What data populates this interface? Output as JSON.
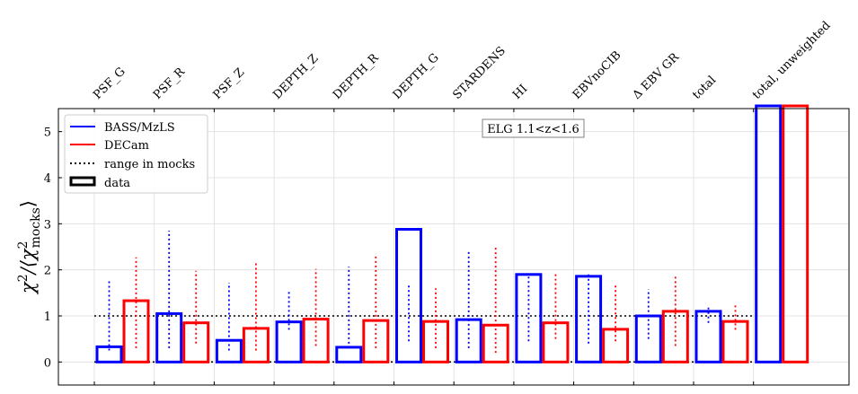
{
  "chart_data": {
    "type": "bar",
    "annotation": "ELG 1.1<z<1.6",
    "ylabel": "χ²/⟨χ²mocks⟩",
    "ylabel_main": "χ",
    "ylabel_sup": "2",
    "ylabel_slash": "/⟨χ",
    "ylabel_sub": "mocks",
    "ylabel_close": "⟩",
    "ylim": [
      -0.5,
      5.5
    ],
    "yticks": [
      0,
      1,
      2,
      3,
      4,
      5
    ],
    "categories": [
      "PSF_G",
      "PSF_R",
      "PSF_Z",
      "DEPTH_Z",
      "DEPTH_R",
      "DEPTH_G",
      "STARDENS",
      "HI",
      "EBVnoCIB",
      "Δ EBV GR",
      "total",
      "total, unweighted"
    ],
    "series": [
      {
        "name": "BASS/MzLS",
        "color": "#0000ff",
        "values": [
          0.33,
          1.05,
          0.47,
          0.87,
          0.32,
          2.88,
          0.92,
          1.9,
          1.86,
          1.0,
          1.1,
          5.5
        ],
        "mock_low": [
          0.25,
          0.3,
          0.25,
          0.7,
          0.3,
          0.45,
          0.3,
          0.45,
          0.4,
          0.5,
          0.85,
          null
        ],
        "mock_high": [
          1.8,
          2.85,
          1.72,
          1.55,
          2.07,
          1.7,
          2.4,
          1.85,
          1.92,
          1.58,
          1.2,
          null
        ]
      },
      {
        "name": "DECam",
        "color": "#ff0000",
        "values": [
          1.33,
          0.85,
          0.73,
          0.93,
          0.9,
          0.88,
          0.8,
          0.85,
          0.71,
          1.1,
          0.88,
          5.5
        ],
        "mock_low": [
          0.3,
          0.4,
          0.25,
          0.35,
          0.3,
          0.3,
          0.2,
          0.5,
          0.45,
          0.35,
          0.7,
          null
        ],
        "mock_high": [
          2.27,
          1.98,
          2.15,
          2.02,
          2.35,
          1.6,
          2.53,
          1.95,
          1.68,
          1.88,
          1.28,
          null
        ]
      }
    ],
    "reference_lines": [
      0,
      1
    ],
    "legend": {
      "placement": "top-left",
      "entries": [
        "BASS/MzLS",
        "DECam",
        "range in mocks",
        "data"
      ]
    }
  }
}
